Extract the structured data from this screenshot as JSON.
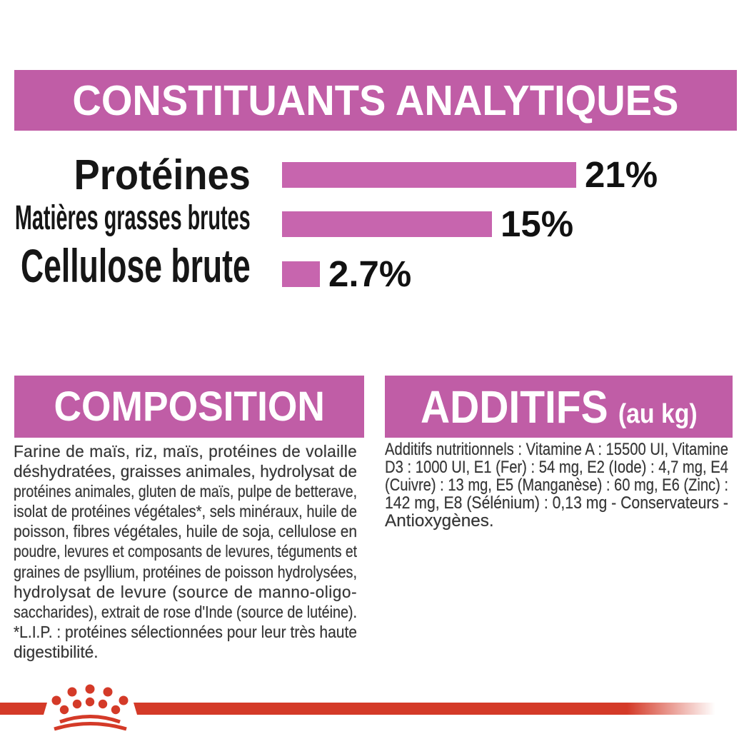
{
  "header": {
    "title": "CONSTITUANTS ANALYTIQUES"
  },
  "chart_data": {
    "type": "bar",
    "orientation": "horizontal",
    "categories": [
      "Protéines",
      "Matières grasses brutes",
      "Cellulose brute"
    ],
    "values": [
      21,
      15,
      2.7
    ],
    "value_labels": [
      "21%",
      "15%",
      "2.7%"
    ],
    "unit": "%",
    "bar_color": "#c765ae",
    "xlim": [
      0,
      21
    ]
  },
  "composition": {
    "title": "COMPOSITION",
    "lines": [
      "Farine de maïs, riz, maïs, protéines de volaille",
      "déshydratées, graisses animales, hydrolysat de",
      "protéines animales, gluten de maïs, pulpe de betterave,",
      "isolat de protéines végétales*, sels minéraux, huile de",
      "poisson, fibres végétales, huile de soja, cellulose en",
      "poudre, levures et composants de levures, téguments et",
      "graines de psyllium, protéines de poisson hydrolysées,",
      "hydrolysat de levure (source de manno-oligo-",
      "saccharides), extrait de rose d'Inde (source de lutéine).",
      "*L.I.P. : protéines sélectionnées pour leur très haute",
      "digestibilité."
    ]
  },
  "additifs": {
    "title": "ADDITIFS",
    "title_suffix": "(au kg)",
    "lines": [
      "Additifs nutritionnels : Vitamine A : 15500 UI, Vitamine",
      "D3 : 1000 UI, E1 (Fer) : 54 mg, E2 (Iode) : 4,7 mg, E4",
      "(Cuivre) : 13 mg, E5 (Manganèse) : 60 mg, E6 (Zinc) :",
      "142 mg, E8 (Sélénium) : 0,13 mg - Conservateurs -",
      "Antioxygènes."
    ]
  },
  "colors": {
    "banner_pink": "#c05da6",
    "bar_pink": "#c765ae",
    "logo_red": "#d43a28",
    "body_text": "#373737"
  },
  "footer": {
    "logo": "royal-canin-crown"
  }
}
